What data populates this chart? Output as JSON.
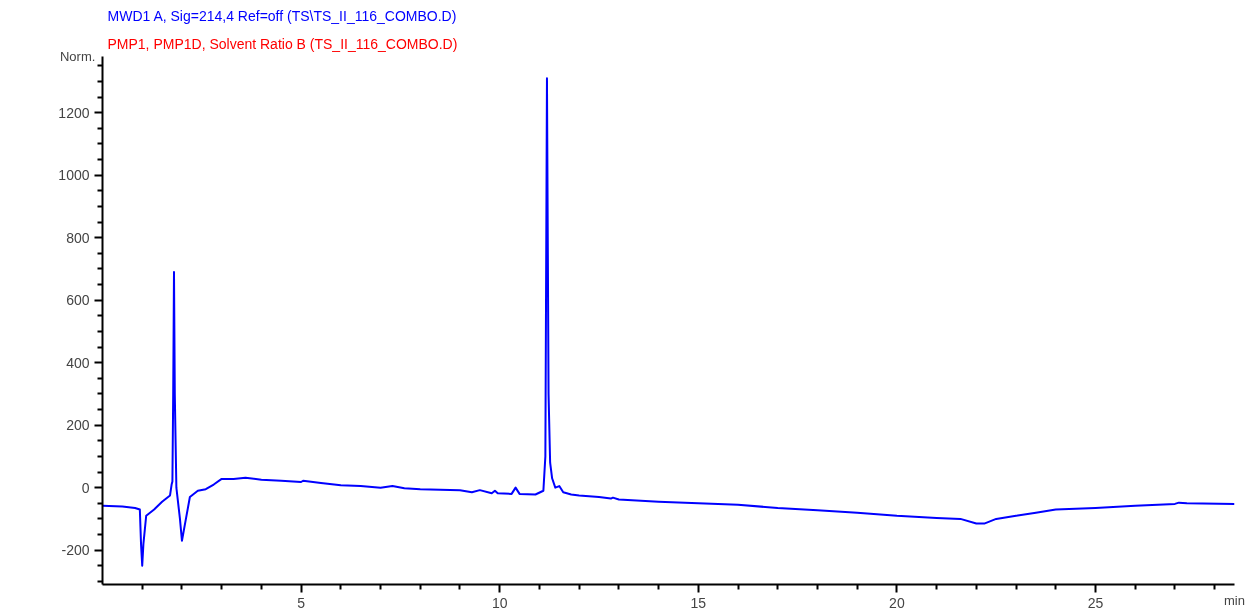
{
  "chart_data": {
    "type": "line",
    "title": "MWD1 A, Sig=214,4 Ref=off (TS\\TS_II_116_COMBO.D)",
    "subtitle": "PMP1, PMP1D, Solvent Ratio B     (TS_II_116_COMBO.D)",
    "xlabel": "min",
    "ylabel": "Norm.",
    "series": [
      {
        "color": "#0000ff",
        "x": [
          0,
          0.5,
          0.82,
          0.94,
          0.97,
          1.0,
          1.03,
          1.1,
          1.3,
          1.5,
          1.7,
          1.74,
          1.76,
          1.78,
          1.8,
          1.82,
          1.86,
          1.95,
          2.0,
          2.1,
          2.2,
          2.4,
          2.6,
          2.8,
          3.0,
          3.3,
          3.6,
          4.0,
          4.5,
          5.0,
          5.05,
          5.5,
          6.0,
          6.5,
          7.0,
          7.3,
          7.6,
          8.0,
          9.0,
          9.3,
          9.5,
          9.8,
          9.88,
          9.95,
          10.3,
          10.4,
          10.5,
          10.9,
          11.1,
          11.15,
          11.19,
          11.23,
          11.27,
          11.32,
          11.4,
          11.5,
          11.6,
          11.8,
          12.0,
          12.5,
          12.8,
          12.85,
          13.0,
          14.0,
          15.0,
          16.0,
          17.0,
          18.0,
          19.0,
          20.0,
          21.0,
          21.6,
          22.0,
          22.2,
          22.5,
          23.0,
          23.5,
          24.0,
          25.0,
          26.0,
          27.0,
          27.1,
          27.3,
          28.5
        ],
        "values": [
          -58,
          -60,
          -65,
          -70,
          -180,
          -250,
          -180,
          -90,
          -70,
          -45,
          -25,
          10,
          20,
          300,
          690,
          300,
          0,
          -100,
          -170,
          -100,
          -30,
          -10,
          -5,
          10,
          28,
          28,
          32,
          25,
          22,
          18,
          22,
          15,
          8,
          5,
          0,
          5,
          -2,
          -5,
          -8,
          -15,
          -8,
          -18,
          -10,
          -18,
          -20,
          0,
          -20,
          -22,
          -10,
          100,
          1310,
          300,
          80,
          30,
          0,
          5,
          -15,
          -22,
          -25,
          -30,
          -35,
          -32,
          -38,
          -45,
          -50,
          -55,
          -65,
          -72,
          -80,
          -90,
          -97,
          -100,
          -115,
          -115,
          -100,
          -90,
          -80,
          -70,
          -65,
          -58,
          -52,
          -48,
          -50,
          -52
        ]
      }
    ],
    "xlim": [
      0,
      28.5
    ],
    "ylim": [
      -310,
      1380
    ],
    "xticks": [
      {
        "value": 1,
        "label": null
      },
      {
        "value": 2,
        "label": null
      },
      {
        "value": 3,
        "label": null
      },
      {
        "value": 4,
        "label": null
      },
      5,
      {
        "value": 6,
        "label": null
      },
      {
        "value": 7,
        "label": null
      },
      {
        "value": 8,
        "label": null
      },
      {
        "value": 9,
        "label": null
      },
      10,
      {
        "value": 11,
        "label": null
      },
      {
        "value": 12,
        "label": null
      },
      {
        "value": 13,
        "label": null
      },
      {
        "value": 14,
        "label": null
      },
      15,
      {
        "value": 16,
        "label": null
      },
      {
        "value": 17,
        "label": null
      },
      {
        "value": 18,
        "label": null
      },
      {
        "value": 19,
        "label": null
      },
      20,
      {
        "value": 21,
        "label": null
      },
      {
        "value": 22,
        "label": null
      },
      {
        "value": 23,
        "label": null
      },
      {
        "value": 24,
        "label": null
      },
      25,
      {
        "value": 26,
        "label": null
      },
      {
        "value": 27,
        "label": null
      },
      {
        "value": 28,
        "label": null
      }
    ],
    "yticks": [
      {
        "value": -300,
        "label": null
      },
      {
        "value": -250,
        "label": null
      },
      -200,
      {
        "value": -150,
        "label": null
      },
      {
        "value": -100,
        "label": null
      },
      {
        "value": -50,
        "label": null
      },
      0,
      {
        "value": 50,
        "label": null
      },
      {
        "value": 100,
        "label": null
      },
      {
        "value": 150,
        "label": null
      },
      200,
      {
        "value": 250,
        "label": null
      },
      {
        "value": 300,
        "label": null
      },
      {
        "value": 350,
        "label": null
      },
      400,
      {
        "value": 450,
        "label": null
      },
      {
        "value": 500,
        "label": null
      },
      {
        "value": 550,
        "label": null
      },
      600,
      {
        "value": 650,
        "label": null
      },
      {
        "value": 700,
        "label": null
      },
      {
        "value": 750,
        "label": null
      },
      800,
      {
        "value": 850,
        "label": null
      },
      {
        "value": 900,
        "label": null
      },
      {
        "value": 950,
        "label": null
      },
      1000,
      {
        "value": 1050,
        "label": null
      },
      {
        "value": 1100,
        "label": null
      },
      {
        "value": 1150,
        "label": null
      },
      1200,
      {
        "value": 1250,
        "label": null
      },
      {
        "value": 1300,
        "label": null
      },
      {
        "value": 1350,
        "label": null
      }
    ],
    "grid": false,
    "marker": "none",
    "line_style": "solid"
  }
}
